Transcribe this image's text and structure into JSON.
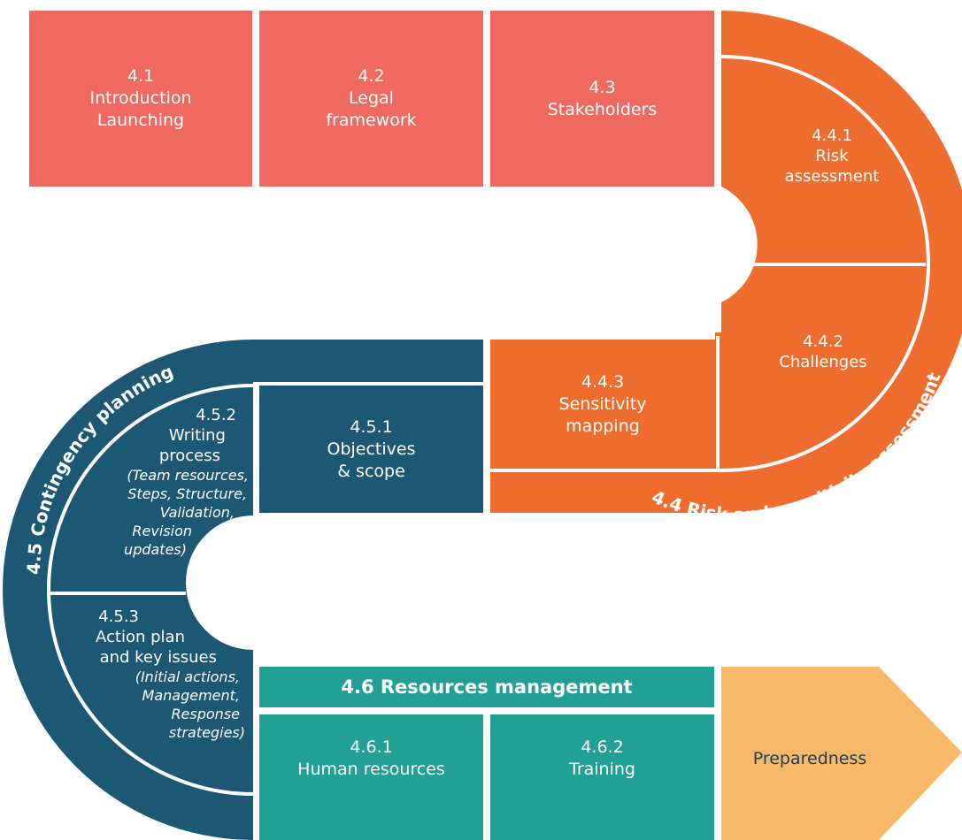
{
  "colors": {
    "coral": "#f06a62",
    "orange": "#ee6d2f",
    "navy": "#1c5873",
    "teal": "#22a095",
    "peach": "#f8b86a"
  },
  "row1": {
    "b41": {
      "num": "4.1",
      "line1": "Introduction",
      "line2": "Launching"
    },
    "b42": {
      "num": "4.2",
      "line1": "Legal",
      "line2": "framework"
    },
    "b43": {
      "num": "4.3",
      "line1": "Stakeholders"
    }
  },
  "risk": {
    "title": "4.4 Risk and sensitivity assessment",
    "b441": {
      "num": "4.4.1",
      "line1": "Risk",
      "line2": "assessment"
    },
    "b442": {
      "num": "4.4.2",
      "line1": "Challenges"
    },
    "b443": {
      "num": "4.4.3",
      "line1": "Sensitivity",
      "line2": "mapping"
    }
  },
  "contingency": {
    "title": "4.5 Contingency planning",
    "b451": {
      "num": "4.5.1",
      "line1": "Objectives",
      "line2": "& scope"
    },
    "b452": {
      "num": "4.5.2",
      "line1": "Writing",
      "line2": "process",
      "detail1": "(Team resources,",
      "detail2": "Steps, Structure,",
      "detail3": "Validation,",
      "detail4": "Revision",
      "detail5": "updates)"
    },
    "b453": {
      "num": "4.5.3",
      "line1": "Action plan",
      "line2": "and key issues",
      "detail1": "(Initial actions,",
      "detail2": "Management,",
      "detail3": "Response",
      "detail4": "strategies)"
    }
  },
  "resources": {
    "title": "4.6 Resources management",
    "b461": {
      "num": "4.6.1",
      "line1": "Human resources"
    },
    "b462": {
      "num": "4.6.2",
      "line1": "Training"
    }
  },
  "preparedness": {
    "label": "Preparedness"
  }
}
